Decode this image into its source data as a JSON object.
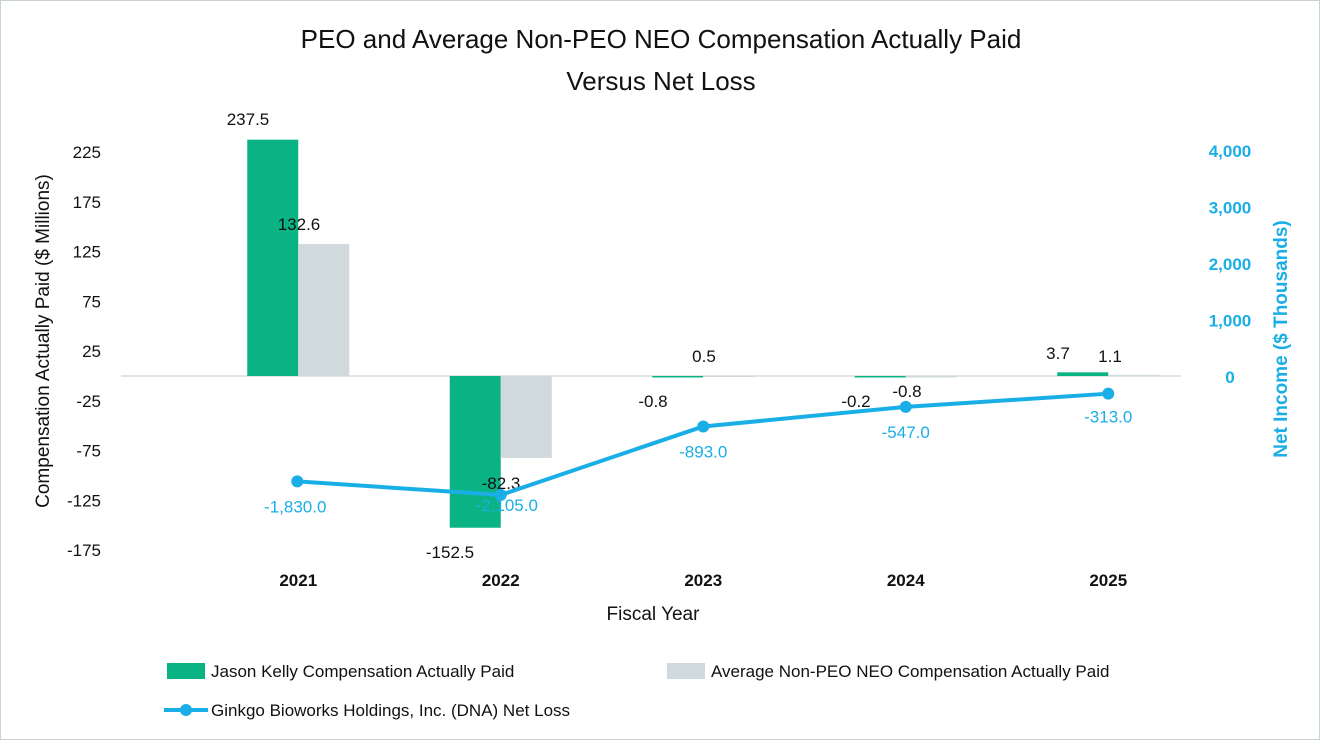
{
  "chart_data": {
    "type": "bar",
    "title_line1": "PEO and Average Non-PEO NEO Compensation Actually Paid",
    "title_line2": "Versus Net Loss",
    "xlabel": "Fiscal Year",
    "ylabel": "Compensation Actually Paid ($ Millions)",
    "y2label": "Net Income ($ Thousands)",
    "categories": [
      "2021",
      "2022",
      "2023",
      "2024",
      "2025"
    ],
    "ylim": [
      -175,
      250
    ],
    "yticks": [
      "225",
      "175",
      "125",
      "75",
      "25",
      "-25",
      "-75",
      "-125",
      "-175"
    ],
    "ytick_values": [
      225,
      175,
      125,
      75,
      25,
      -25,
      -75,
      -125,
      -175
    ],
    "y2lim": [
      -3000,
      4000
    ],
    "y2ticks": [
      "4,000",
      "3,000",
      "2,000",
      "1,000",
      "0"
    ],
    "y2tick_values": [
      4000,
      3000,
      2000,
      1000,
      0
    ],
    "series": [
      {
        "name": "Jason Kelly Compensation Actually Paid",
        "kind": "bar",
        "color": "#0ab383",
        "values": [
          237.5,
          -152.5,
          -0.8,
          -0.2,
          3.7
        ],
        "labels": [
          "237.5",
          "-152.5",
          "-0.8",
          "-0.2",
          "3.7"
        ]
      },
      {
        "name": "Average Non-PEO NEO Compensation Actually Paid",
        "kind": "bar",
        "color": "#d0d9dc",
        "values": [
          132.6,
          -82.3,
          0.5,
          -0.8,
          1.1
        ],
        "labels": [
          "132.6",
          "-82.3",
          "0.5",
          "-0.8",
          "1.1"
        ]
      },
      {
        "name": "Ginkgo Bioworks Holdings, Inc. (DNA) Net Loss",
        "kind": "line",
        "axis": "right",
        "color": "#1aaee6",
        "values": [
          -1830.0,
          -2105.0,
          -893.0,
          -547.0,
          -313.0
        ],
        "labels": [
          "-1,830.0",
          "-2,105.0",
          "-893.0",
          "-547.0",
          "-313.0"
        ]
      }
    ],
    "legend_position": "bottom",
    "grid": false
  }
}
